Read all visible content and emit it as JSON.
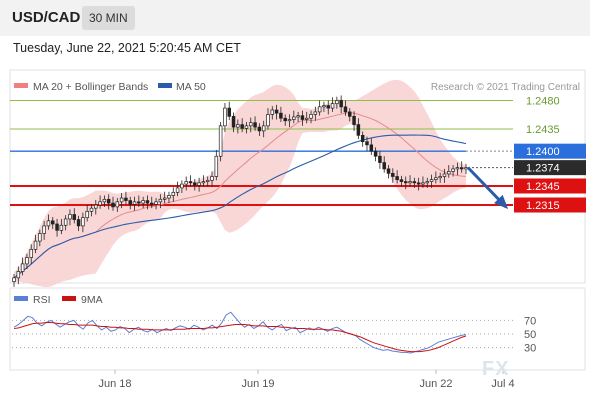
{
  "header": {
    "symbol": "USD/CAD",
    "timeframe": "30 MIN",
    "timestamp": "Tuesday, June 22, 2021 5:20:45 AM CET"
  },
  "legend": {
    "ma20_label": "MA 20 + Bollinger Bands",
    "ma50_label": "MA 50",
    "copyright": "Research © 2021 Trading Central",
    "ma20_color": "#f08080",
    "ma50_color": "#2a5caa"
  },
  "watermark": "FX",
  "chart_data": [
    {
      "type": "candlestick",
      "ylim": [
        1.2195,
        1.2525
      ],
      "x_ticks": [
        "Jun 18",
        "Jun 19",
        "Jun 22",
        "Jul 4"
      ],
      "closes": [
        1.22,
        1.221,
        1.2222,
        1.2232,
        1.2245,
        1.2258,
        1.227,
        1.2282,
        1.229,
        1.2285,
        1.2275,
        1.2283,
        1.2293,
        1.23,
        1.2292,
        1.2282,
        1.2295,
        1.2305,
        1.231,
        1.2315,
        1.232,
        1.2324,
        1.2318,
        1.2312,
        1.232,
        1.2326,
        1.2322,
        1.2316,
        1.232,
        1.2318,
        1.2322,
        1.2318,
        1.2316,
        1.232,
        1.2324,
        1.2326,
        1.233,
        1.2335,
        1.2342,
        1.2348,
        1.2352,
        1.235,
        1.2346,
        1.235,
        1.2352,
        1.2354,
        1.236,
        1.2392,
        1.244,
        1.2468,
        1.2455,
        1.2438,
        1.2442,
        1.2436,
        1.244,
        1.2445,
        1.2438,
        1.2432,
        1.244,
        1.2458,
        1.2465,
        1.246,
        1.2452,
        1.2448,
        1.245,
        1.2454,
        1.2456,
        1.245,
        1.2452,
        1.2458,
        1.2462,
        1.247,
        1.2472,
        1.2468,
        1.2475,
        1.248,
        1.247,
        1.2462,
        1.2455,
        1.2442,
        1.2425,
        1.2415,
        1.241,
        1.24,
        1.2392,
        1.2382,
        1.2372,
        1.2365,
        1.236,
        1.2355,
        1.2352,
        1.235,
        1.2352,
        1.235,
        1.2348,
        1.235,
        1.2352,
        1.2355,
        1.2358,
        1.236,
        1.2364,
        1.2368,
        1.2372,
        1.2374,
        1.2372,
        1.2374
      ],
      "forecast_from": 1.2374,
      "forecast_to": 1.2312,
      "levels": [
        {
          "value": 1.248,
          "label": "1.2480",
          "kind": "resistance"
        },
        {
          "value": 1.2435,
          "label": "1.2435",
          "kind": "resistance"
        },
        {
          "value": 1.24,
          "label": "1.2400",
          "kind": "pivot"
        },
        {
          "value": 1.2374,
          "label": "1.2374",
          "kind": "last"
        },
        {
          "value": 1.2345,
          "label": "1.2345",
          "kind": "support"
        },
        {
          "value": 1.2315,
          "label": "1.2315",
          "kind": "support"
        }
      ],
      "colors": {
        "resistance": "#8fbf4a",
        "pivot": "#2a6fdb",
        "last": "#2b2b2b",
        "support": "#dd1111",
        "bands": "#f7c9c9"
      }
    },
    {
      "type": "line",
      "series": [
        {
          "name": "RSI",
          "color": "#5b7fd6"
        },
        {
          "name": "9MA",
          "color": "#cc1111"
        }
      ],
      "ylim": [
        0,
        100
      ],
      "y_ticks": [
        70,
        50,
        30
      ],
      "rsi": [
        60,
        64,
        70,
        76,
        74,
        66,
        62,
        67,
        70,
        65,
        60,
        64,
        68,
        70,
        62,
        57,
        66,
        70,
        62,
        56,
        60,
        54,
        56,
        61,
        58,
        52,
        57,
        60,
        55,
        53,
        57,
        52,
        55,
        58,
        55,
        59,
        62,
        60,
        57,
        63,
        60,
        56,
        59,
        63,
        58,
        66,
        78,
        82,
        74,
        66,
        60,
        64,
        58,
        62,
        68,
        60,
        56,
        61,
        64,
        55,
        58,
        60,
        52,
        55,
        59,
        56,
        60,
        57,
        54,
        58,
        60,
        56,
        52,
        50,
        48,
        42,
        38,
        34,
        30,
        28,
        26,
        27,
        25,
        24,
        23,
        23,
        22,
        24,
        26,
        28,
        30,
        34,
        38,
        40,
        42,
        44,
        46,
        48,
        49
      ],
      "ma9": [
        58,
        59,
        61,
        63,
        65,
        66,
        66,
        67,
        67,
        66,
        65,
        65,
        64,
        64,
        63,
        63,
        63,
        63,
        62,
        61,
        61,
        60,
        60,
        59,
        59,
        58,
        58,
        57,
        57,
        57,
        56,
        56,
        56,
        56,
        56,
        57,
        57,
        57,
        58,
        58,
        58,
        58,
        59,
        59,
        60,
        61,
        62,
        63,
        64,
        64,
        64,
        63,
        62,
        62,
        62,
        61,
        61,
        61,
        60,
        60,
        59,
        58,
        58,
        58,
        57,
        57,
        57,
        57,
        56,
        56,
        55,
        54,
        52,
        50,
        48,
        46,
        43,
        40,
        37,
        35,
        33,
        31,
        29,
        27,
        26,
        25,
        24,
        24,
        24,
        25,
        26,
        28,
        30,
        33,
        36,
        39,
        42,
        45,
        47
      ]
    }
  ]
}
